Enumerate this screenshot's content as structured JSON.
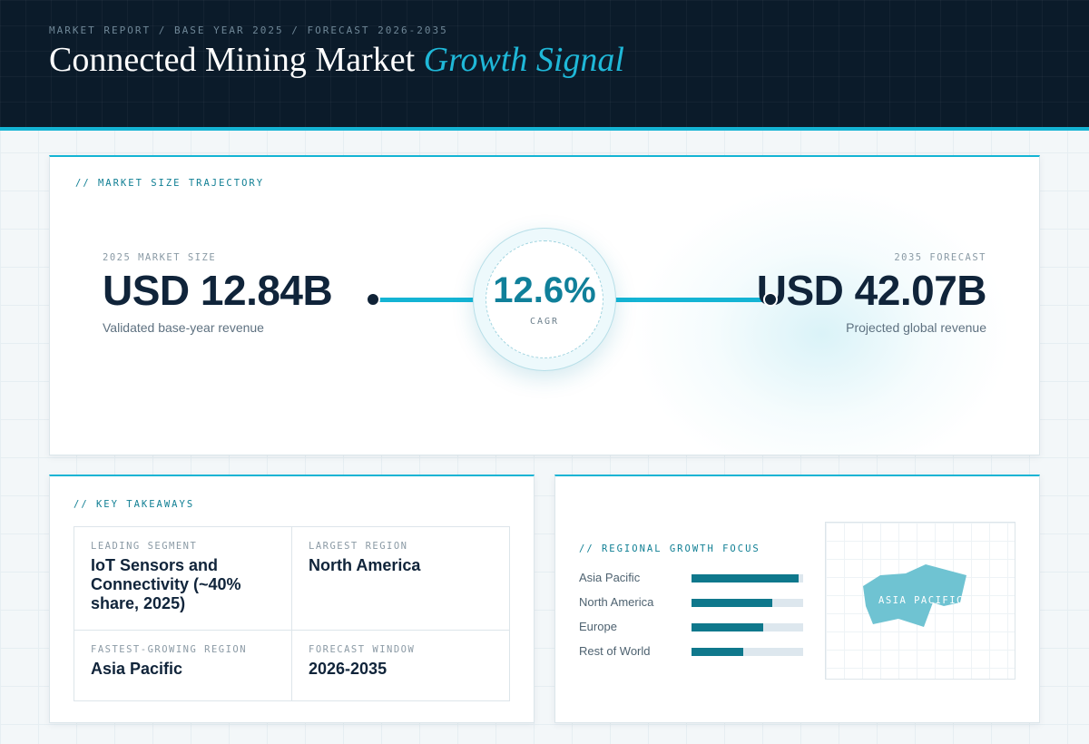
{
  "header": {
    "breadcrumb": "MARKET REPORT / BASE YEAR 2025 / FORECAST 2026-2035",
    "title_main": "Connected Mining Market",
    "title_accent": "Growth Signal"
  },
  "trajectory": {
    "label": "// MARKET SIZE TRAJECTORY",
    "base": {
      "label": "2025 MARKET SIZE",
      "value": "USD 12.84B",
      "desc": "Validated base-year revenue"
    },
    "cagr": {
      "value": "12.6%",
      "label": "CAGR"
    },
    "forecast": {
      "label": "2035 FORECAST",
      "value": "USD 42.07B",
      "desc": "Projected global revenue"
    }
  },
  "takeaways": {
    "label": "// KEY TAKEAWAYS",
    "items": [
      {
        "label": "LEADING SEGMENT",
        "value": "IoT Sensors and Connectivity (~40% share, 2025)"
      },
      {
        "label": "LARGEST REGION",
        "value": "North America"
      },
      {
        "label": "FASTEST-GROWING REGION",
        "value": "Asia Pacific"
      },
      {
        "label": "FORECAST WINDOW",
        "value": "2026-2035"
      }
    ]
  },
  "regional": {
    "label": "// REGIONAL GROWTH FOCUS",
    "regions": [
      {
        "name": "Asia Pacific",
        "level": 0.96
      },
      {
        "name": "North America",
        "level": 0.72
      },
      {
        "name": "Europe",
        "level": 0.64
      },
      {
        "name": "Rest of World",
        "level": 0.46
      }
    ],
    "map_label": "ASIA PACIFIC",
    "map_color": "#6fc3d2"
  },
  "colors": {
    "accent": "#14b4d4",
    "dark": "#0b1b2a",
    "bar": "#0f788c"
  }
}
